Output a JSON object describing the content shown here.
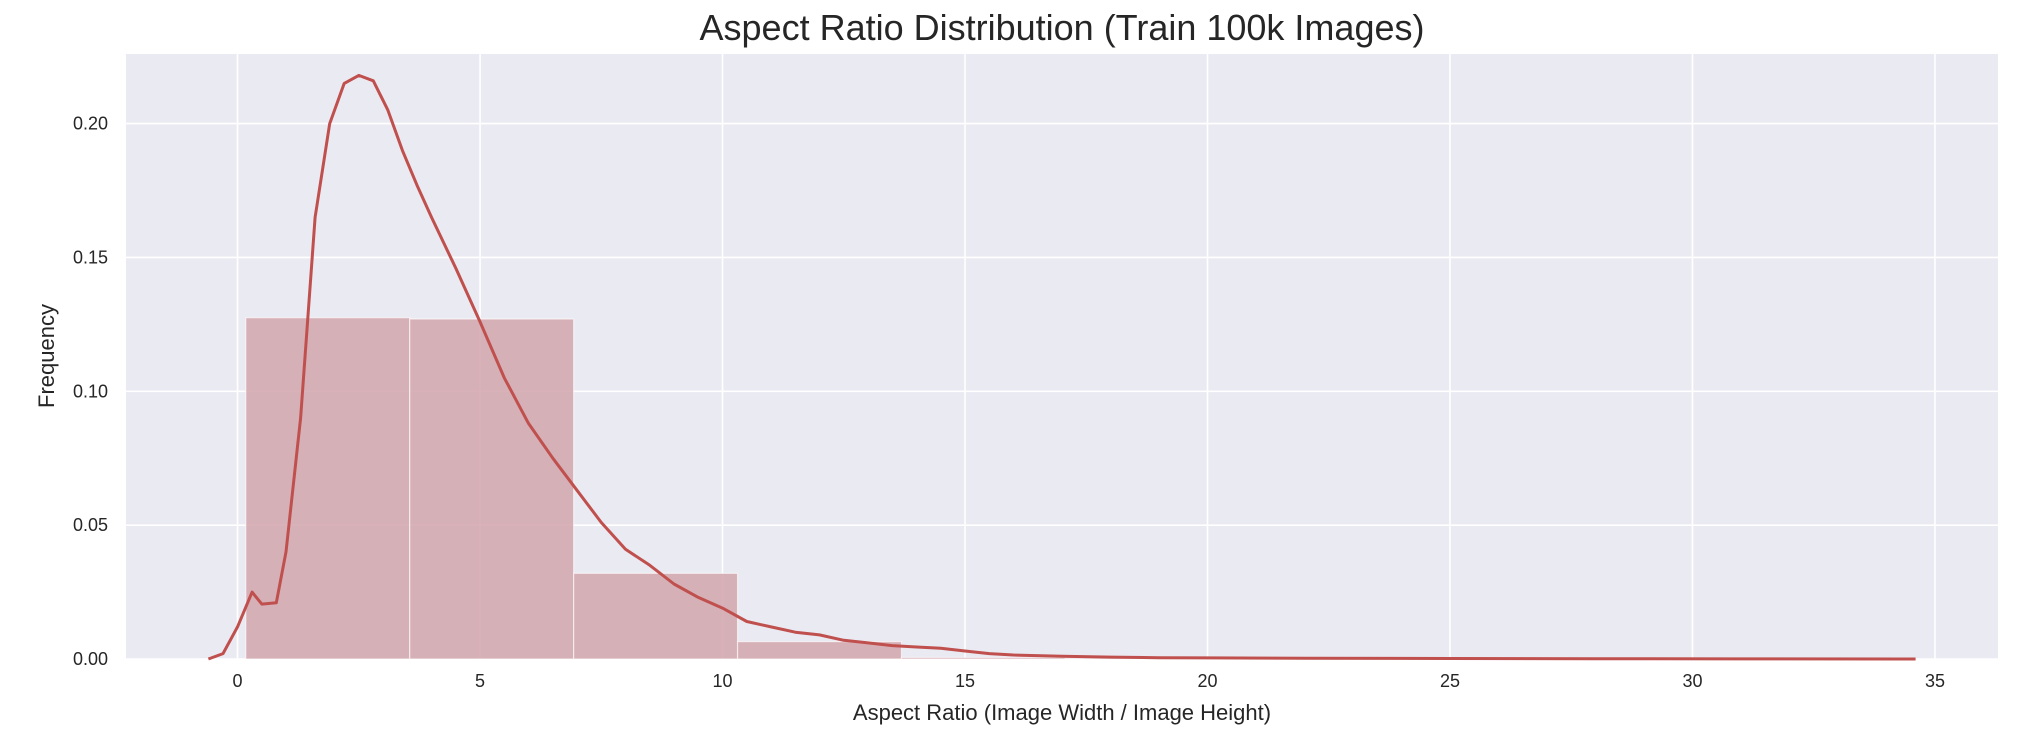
{
  "chart_data": {
    "type": "bar",
    "title": "Aspect Ratio Distribution (Train 100k Images)",
    "xlabel": "Aspect Ratio (Image Width / Image Height)",
    "ylabel": "Frequency",
    "xlim": [
      -2.3,
      36.3
    ],
    "ylim": [
      0,
      0.226
    ],
    "xticks": [
      0,
      5,
      10,
      15,
      20,
      25,
      30,
      35
    ],
    "xtick_labels": [
      "0",
      "5",
      "10",
      "15",
      "20",
      "25",
      "30",
      "35"
    ],
    "yticks": [
      0.0,
      0.05,
      0.1,
      0.15,
      0.2
    ],
    "ytick_labels": [
      "0.00",
      "0.05",
      "0.10",
      "0.15",
      "0.20"
    ],
    "grid": true,
    "background_color": "#eaeaf2",
    "bar_color": "#d4aab0",
    "kde_color": "#c0504d",
    "histogram": [
      {
        "x0": 0.17,
        "x1": 3.55,
        "value": 0.1275
      },
      {
        "x0": 3.55,
        "x1": 6.93,
        "value": 0.127
      },
      {
        "x0": 6.93,
        "x1": 10.31,
        "value": 0.032
      },
      {
        "x0": 10.31,
        "x1": 13.69,
        "value": 0.0065
      },
      {
        "x0": 13.69,
        "x1": 17.07,
        "value": 0.0006
      },
      {
        "x0": 17.07,
        "x1": 20.45,
        "value": 0.0002
      },
      {
        "x0": 20.45,
        "x1": 23.83,
        "value": 0.0001
      },
      {
        "x0": 23.83,
        "x1": 27.21,
        "value": 5e-05
      },
      {
        "x0": 27.21,
        "x1": 30.59,
        "value": 3e-05
      },
      {
        "x0": 30.59,
        "x1": 33.97,
        "value": 2e-05
      }
    ],
    "kde": {
      "x": [
        -0.6,
        -0.3,
        0.0,
        0.3,
        0.5,
        0.8,
        1.0,
        1.3,
        1.6,
        1.9,
        2.2,
        2.5,
        2.8,
        3.1,
        3.4,
        3.7,
        4.0,
        4.5,
        5.0,
        5.5,
        6.0,
        6.5,
        7.0,
        7.5,
        8.0,
        8.5,
        9.0,
        9.5,
        10.0,
        10.5,
        11.0,
        11.5,
        12.0,
        12.5,
        13.0,
        13.5,
        14.0,
        14.5,
        15.0,
        15.5,
        16.0,
        17.0,
        18.0,
        19.0,
        20.0,
        22.0,
        25.0,
        28.0,
        31.0,
        34.6
      ],
      "y": [
        0.0,
        0.002,
        0.012,
        0.025,
        0.0205,
        0.021,
        0.04,
        0.09,
        0.165,
        0.2,
        0.215,
        0.218,
        0.216,
        0.205,
        0.19,
        0.177,
        0.165,
        0.146,
        0.126,
        0.105,
        0.088,
        0.075,
        0.063,
        0.051,
        0.041,
        0.035,
        0.028,
        0.023,
        0.019,
        0.014,
        0.012,
        0.01,
        0.009,
        0.007,
        0.006,
        0.005,
        0.0045,
        0.004,
        0.003,
        0.002,
        0.0015,
        0.001,
        0.0007,
        0.0005,
        0.0004,
        0.0003,
        0.0002,
        0.0001,
        5e-05,
        0.0
      ]
    }
  }
}
